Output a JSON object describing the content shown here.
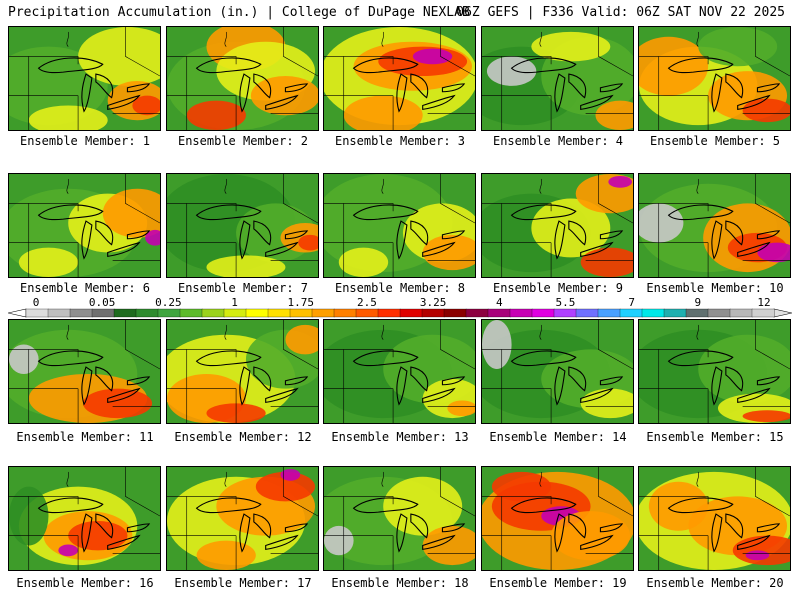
{
  "header": {
    "left_title": "Precipitation Accumulation (in.) | College of DuPage NEXLAB",
    "right_title": "06Z GEFS | F336 Valid: 06Z SAT NOV 22 2025"
  },
  "colorbar": {
    "labels": [
      "0",
      "0.05",
      "0.25",
      "1",
      "1.75",
      "2.5",
      "3.25",
      "4",
      "5.5",
      "7",
      "9",
      "12"
    ],
    "colors": [
      "#dcdcdc",
      "#bfbfbf",
      "#8f8f8f",
      "#707070",
      "#1f6b1f",
      "#2e8b2e",
      "#3fa53f",
      "#5dbb2a",
      "#9ad21c",
      "#d4ec10",
      "#ffff00",
      "#ffe000",
      "#ffc000",
      "#ff9f00",
      "#ff7f00",
      "#ff5a00",
      "#ff2e00",
      "#e00000",
      "#b40000",
      "#8a0000",
      "#8c0040",
      "#a8007a",
      "#c800b4",
      "#e000e0",
      "#b040ff",
      "#7070ff",
      "#4aa0ff",
      "#20d0ff",
      "#00e8e8",
      "#20b0b0",
      "#607070",
      "#909090",
      "#b8b8b8",
      "#d0d0d0"
    ]
  },
  "panels": [
    {
      "label": "Ensemble Member: 1"
    },
    {
      "label": "Ensemble Member: 2"
    },
    {
      "label": "Ensemble Member: 3"
    },
    {
      "label": "Ensemble Member: 4"
    },
    {
      "label": "Ensemble Member: 5"
    },
    {
      "label": "Ensemble Member: 6"
    },
    {
      "label": "Ensemble Member: 7"
    },
    {
      "label": "Ensemble Member: 8"
    },
    {
      "label": "Ensemble Member: 9"
    },
    {
      "label": "Ensemble Member: 10"
    },
    {
      "label": "Ensemble Member: 11"
    },
    {
      "label": "Ensemble Member: 12"
    },
    {
      "label": "Ensemble Member: 13"
    },
    {
      "label": "Ensemble Member: 14"
    },
    {
      "label": "Ensemble Member: 15"
    },
    {
      "label": "Ensemble Member: 16"
    },
    {
      "label": "Ensemble Member: 17"
    },
    {
      "label": "Ensemble Member: 18"
    },
    {
      "label": "Ensemble Member: 19"
    },
    {
      "label": "Ensemble Member: 20"
    }
  ]
}
